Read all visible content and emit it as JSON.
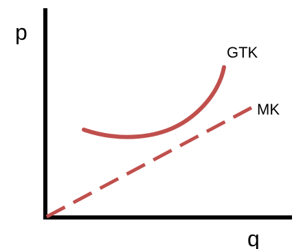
{
  "axes": {
    "y_label": "p",
    "x_label": "q"
  },
  "curves": {
    "gtk": {
      "label": "GTK",
      "color": "#c0504d"
    },
    "mk": {
      "label": "MK",
      "color": "#c0504d"
    }
  }
}
